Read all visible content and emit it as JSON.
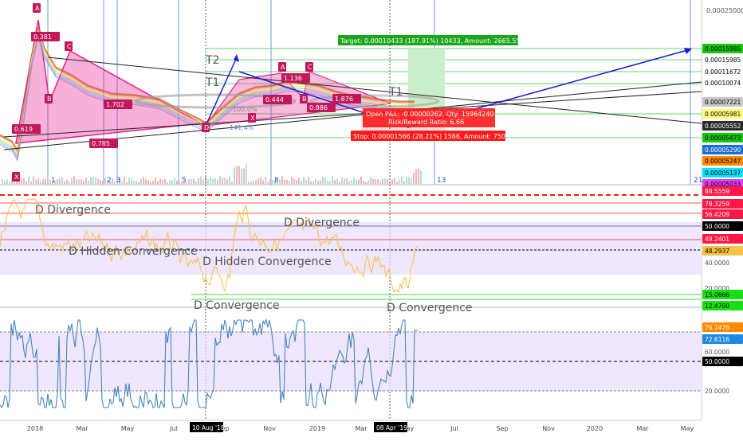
{
  "chart_data": [
    {
      "type": "candlestick",
      "panel": "price",
      "price_labels": [
        {
          "text": "0.00015985",
          "bg": "#16c60c",
          "fg": "#000000"
        },
        {
          "text": "0.00015985",
          "bg": "#ffffff",
          "fg": "#000000"
        },
        {
          "text": "0.00011672",
          "bg": "#ffffff",
          "fg": "#000000"
        },
        {
          "text": "0.00010074",
          "bg": "#ffffff",
          "fg": "#000000"
        },
        {
          "text": "0.00007221",
          "bg": "#c8c8c8",
          "fg": "#000000"
        },
        {
          "text": "0.00005981",
          "bg": "#ffff7a",
          "fg": "#000000"
        },
        {
          "text": "0.00005552",
          "bg": "#2b2b2b",
          "fg": "#ffffff"
        },
        {
          "text": "0.00005473",
          "bg": "#16c60c",
          "fg": "#000000"
        },
        {
          "text": "0.00005290",
          "bg": "#1e6bd6",
          "fg": "#ffffff"
        },
        {
          "text": "0.00005247",
          "bg": "#ff8a00",
          "fg": "#000000"
        },
        {
          "text": "0.00005137",
          "bg": "#00e5ff",
          "fg": "#000000"
        },
        {
          "text": "0.00005033",
          "bg": "#e040fb",
          "fg": "#000000"
        }
      ],
      "axis_top_label": "0.00025000",
      "pattern_labels_left": [
        "A",
        "0.381",
        "C",
        "B",
        "0.619",
        "X",
        "0.785",
        "1.702"
      ],
      "pattern_labels_right": [
        "A",
        "C",
        "1.136",
        "B",
        "0.444",
        "0.886",
        "1.876",
        "X",
        "D"
      ],
      "pattern_label_D_left": "D",
      "trend_labels": [
        "T2",
        "T1",
        "T1"
      ],
      "fib_labels": [
        "100.0%",
        "141.4%"
      ],
      "cycle_numbers": [
        "1",
        "2",
        "3",
        "5",
        "8",
        "13",
        "21"
      ],
      "target_box": "Target: 0.00010433 (187.91%) 10433, Amount: 2665.55",
      "position_box_lines": [
        "Open P&L: -0.00000262, Qty: 15964240",
        "Risk/Reward Ratio: 6.66"
      ],
      "stop_box": "Stop: 0.00001566 (28.21%) 1566, Amount: 750"
    },
    {
      "type": "line",
      "panel": "rsi",
      "price_labels": [
        {
          "text": "88.5559",
          "bg": "#ff1744",
          "fg": "#ffffff"
        },
        {
          "text": "78.3259",
          "bg": "#ff1744",
          "fg": "#ffffff"
        },
        {
          "text": "56.4209",
          "bg": "#ff1744",
          "fg": "#ffffff"
        },
        {
          "text": "50.0000",
          "bg": "#000000",
          "fg": "#ffffff"
        },
        {
          "text": "49.2401",
          "bg": "#ff1744",
          "fg": "#ffffff"
        },
        {
          "text": "48.2937",
          "bg": "#f5c242",
          "fg": "#000000"
        },
        {
          "text": "40.0000",
          "bg": "#ffffff",
          "fg": "#555555"
        },
        {
          "text": "20.0000",
          "bg": "#ffffff",
          "fg": "#555555"
        },
        {
          "text": "15.0666",
          "bg": "#16e010",
          "fg": "#000000"
        },
        {
          "text": "12.4700",
          "bg": "#16e010",
          "fg": "#000000"
        }
      ],
      "annotations": [
        "D Divergence",
        "D Divergence",
        "D Hidden Convergence",
        "D Hidden Convergence",
        "D Convergence",
        "D Convergence"
      ]
    },
    {
      "type": "line",
      "panel": "stoch",
      "price_labels": [
        {
          "text": "76.1476",
          "bg": "#ff8a00",
          "fg": "#ffffff"
        },
        {
          "text": "72.6116",
          "bg": "#1e88e5",
          "fg": "#ffffff"
        },
        {
          "text": "60.0000",
          "bg": "#ffffff",
          "fg": "#555555"
        },
        {
          "text": "50.0000",
          "bg": "#000000",
          "fg": "#ffffff"
        },
        {
          "text": "20.0000",
          "bg": "#ffffff",
          "fg": "#555555"
        }
      ]
    }
  ],
  "time_axis": {
    "labels": [
      "2018",
      "Mar",
      "May",
      "Jul",
      "Sep",
      "Nov",
      "2019",
      "Mar",
      "May",
      "Jul",
      "Sep",
      "Nov",
      "2020",
      "Mar",
      "May"
    ],
    "highlight_labels": [
      "10 Aug '18",
      "08 Apr '19"
    ]
  },
  "colors": {
    "harmonic_fill": "#e91e8c",
    "harmonic_label_bg": "#c2185b",
    "trend_blue": "#1a1adb",
    "cycle_line": "#4d7fe0",
    "rsi_line": "#f5c242",
    "stoch_k": "#1e88e5",
    "stoch_d": "#ff8a00",
    "band_fill": "#e8dcff",
    "target_green": "#1aa61a",
    "stop_red": "#ff1a1a"
  }
}
